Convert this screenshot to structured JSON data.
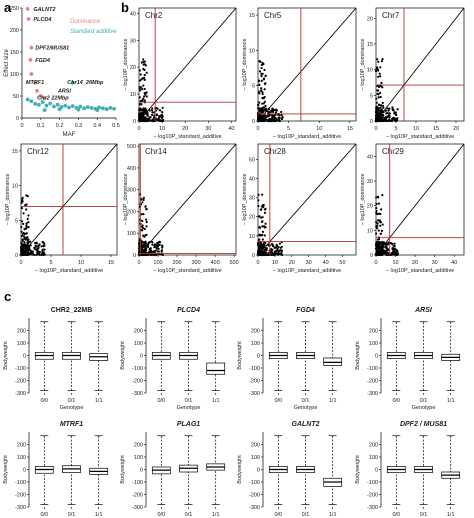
{
  "panel_labels": {
    "a": "a",
    "b": "b",
    "c": "c"
  },
  "colors": {
    "dominance": "#f08080",
    "standard_additive": "#40b0b0",
    "threshold": "#b03030",
    "diagonal": "#000000",
    "points": "#000000",
    "box_fill": "#ffffff",
    "text": "#222222"
  },
  "chart_data": [
    {
      "id": "a",
      "type": "scatter",
      "title": "",
      "xlabel": "MAF",
      "ylabel": "Effect size",
      "xlim": [
        0,
        0.5
      ],
      "ylim": [
        0,
        250
      ],
      "xticks": [
        0.0,
        0.1,
        0.2,
        0.3,
        0.4,
        0.5
      ],
      "yticks": [
        0,
        50,
        100,
        150,
        200,
        250
      ],
      "legend": {
        "position": "top-right",
        "entries": [
          "Dominance",
          "Standard additive"
        ]
      },
      "series": [
        {
          "name": "Dominance",
          "color_key": "dominance",
          "points": [
            [
              0.03,
              248
            ],
            [
              0.035,
              225
            ],
            [
              0.05,
              160
            ],
            [
              0.045,
              132
            ],
            [
              0.05,
              100
            ],
            [
              0.07,
              80
            ],
            [
              0.08,
              62
            ],
            [
              0.1,
              50
            ],
            [
              0.12,
              45
            ]
          ]
        },
        {
          "name": "Standard additive",
          "color_key": "standard_additive",
          "points": [
            [
              0.03,
              42
            ],
            [
              0.05,
              38
            ],
            [
              0.07,
              32
            ],
            [
              0.09,
              30
            ],
            [
              0.11,
              36
            ],
            [
              0.13,
              28
            ],
            [
              0.15,
              33
            ],
            [
              0.17,
              26
            ],
            [
              0.19,
              30
            ],
            [
              0.21,
              25
            ],
            [
              0.23,
              28
            ],
            [
              0.25,
              24
            ],
            [
              0.27,
              27
            ],
            [
              0.29,
              23
            ],
            [
              0.31,
              26
            ],
            [
              0.33,
              22
            ],
            [
              0.35,
              25
            ],
            [
              0.37,
              23
            ],
            [
              0.39,
              21
            ],
            [
              0.41,
              24
            ],
            [
              0.43,
              22
            ],
            [
              0.45,
              20
            ],
            [
              0.47,
              23
            ],
            [
              0.49,
              21
            ],
            [
              0.12,
              18
            ],
            [
              0.2,
              20
            ],
            [
              0.3,
              19
            ],
            [
              0.4,
              18
            ],
            [
              0.27,
              80
            ]
          ]
        }
      ],
      "annotations": [
        {
          "text": "GALNT2",
          "x": 0.05,
          "y": 248
        },
        {
          "text": "PLCD4",
          "x": 0.05,
          "y": 225
        },
        {
          "text": "DPF2/MUS81",
          "x": 0.06,
          "y": 160
        },
        {
          "text": "FGD4",
          "x": 0.06,
          "y": 132
        },
        {
          "text": "MTRF1",
          "x": 0.01,
          "y": 82
        },
        {
          "text": "ARSI",
          "x": 0.18,
          "y": 63
        },
        {
          "text": "Chr14_26Mbp",
          "x": 0.23,
          "y": 82
        },
        {
          "text": "Chr2 22Mbp",
          "x": 0.07,
          "y": 47
        }
      ]
    },
    {
      "id": "b",
      "type": "scatter",
      "xlabel": "− log10P_standard_additive",
      "ylabel": "− log10P_dominance",
      "subplots": [
        {
          "title": "Chr2",
          "xlim": [
            0,
            42
          ],
          "ylim": [
            0,
            42
          ],
          "xticks": [
            0,
            10,
            20,
            30,
            40
          ],
          "yticks": [
            0,
            10,
            20,
            30,
            40
          ],
          "vline": 7,
          "hline": 7
        },
        {
          "title": "Chr5",
          "xlim": [
            0,
            16
          ],
          "ylim": [
            0,
            16
          ],
          "xticks": [
            0,
            5,
            10,
            15
          ],
          "yticks": [
            0,
            5,
            10,
            15
          ],
          "vline": 7,
          "hline": 1
        },
        {
          "title": "Chr7",
          "xlim": [
            0,
            22
          ],
          "ylim": [
            0,
            22
          ],
          "xticks": [
            0,
            5,
            10,
            15,
            20
          ],
          "yticks": [
            0,
            5,
            10,
            15,
            20
          ],
          "vline": 7,
          "hline": 7
        },
        {
          "title": "Chr12",
          "xlim": [
            0,
            16
          ],
          "ylim": [
            0,
            16
          ],
          "xticks": [
            0,
            5,
            10,
            15
          ],
          "yticks": [
            0,
            5,
            10,
            15
          ],
          "vline": 7,
          "hline": 7
        },
        {
          "title": "Chr14",
          "xlim": [
            0,
            510
          ],
          "ylim": [
            0,
            510
          ],
          "xticks": [
            0,
            100,
            200,
            300,
            400,
            500
          ],
          "yticks": [
            0,
            100,
            200,
            300,
            400,
            500
          ],
          "vline": 7,
          "hline": 7
        },
        {
          "title": "Chr28",
          "xlim": [
            0,
            58
          ],
          "ylim": [
            0,
            58
          ],
          "xticks": [
            0,
            10,
            20,
            30,
            40,
            50
          ],
          "yticks": [
            0,
            10,
            20,
            30,
            40,
            50
          ],
          "vline": 7,
          "hline": 7
        },
        {
          "title": "Chr29",
          "xlim": [
            0,
            45
          ],
          "ylim": [
            0,
            45
          ],
          "xticks": [
            0,
            10,
            20,
            30,
            40
          ],
          "yticks": [
            0,
            10,
            20,
            30,
            40
          ],
          "vline": 7,
          "hline": 7
        }
      ]
    },
    {
      "id": "c",
      "type": "box",
      "xlabel": "Genotype",
      "ylabel": "Bodyweight",
      "categories": [
        "0/0",
        "0/1",
        "1/1"
      ],
      "ylim": [
        -300,
        300
      ],
      "yticks": [
        -300,
        -200,
        -100,
        0,
        100,
        200
      ],
      "subplots": [
        {
          "title": "CHR2_22MB",
          "italic": false,
          "boxes": [
            [
              -280,
              -30,
              0,
              25,
              270
            ],
            [
              -280,
              -30,
              0,
              25,
              270
            ],
            [
              -280,
              -40,
              -10,
              15,
              270
            ]
          ]
        },
        {
          "title": "PLCD4",
          "italic": true,
          "boxes": [
            [
              -280,
              -30,
              0,
              25,
              270
            ],
            [
              -280,
              -30,
              0,
              25,
              270
            ],
            [
              -280,
              -150,
              -120,
              -60,
              270
            ]
          ]
        },
        {
          "title": "FGD4",
          "italic": true,
          "boxes": [
            [
              -280,
              -25,
              0,
              25,
              270
            ],
            [
              -280,
              -25,
              0,
              25,
              270
            ],
            [
              -280,
              -80,
              -55,
              -20,
              270
            ]
          ]
        },
        {
          "title": "ARSI",
          "italic": true,
          "boxes": [
            [
              -280,
              -25,
              0,
              25,
              270
            ],
            [
              -280,
              -25,
              0,
              25,
              270
            ],
            [
              -280,
              -40,
              -15,
              10,
              270
            ]
          ]
        },
        {
          "title": "MTRF1",
          "italic": true,
          "boxes": [
            [
              -280,
              -30,
              0,
              25,
              270
            ],
            [
              -280,
              -25,
              5,
              30,
              270
            ],
            [
              -280,
              -40,
              -15,
              10,
              270
            ]
          ]
        },
        {
          "title": "PLAG1",
          "italic": true,
          "boxes": [
            [
              -280,
              -35,
              -5,
              20,
              270
            ],
            [
              -280,
              -20,
              10,
              35,
              270
            ],
            [
              -280,
              -5,
              20,
              45,
              270
            ]
          ]
        },
        {
          "title": "GALNT2",
          "italic": true,
          "boxes": [
            [
              -280,
              -25,
              0,
              25,
              270
            ],
            [
              -280,
              -25,
              0,
              25,
              270
            ],
            [
              -280,
              -135,
              -100,
              -70,
              270
            ]
          ]
        },
        {
          "title": "DPF2 / MUS81",
          "italic": true,
          "boxes": [
            [
              -280,
              -25,
              0,
              25,
              270
            ],
            [
              -280,
              -25,
              0,
              25,
              270
            ],
            [
              -280,
              -70,
              -45,
              -20,
              270
            ]
          ]
        }
      ]
    }
  ]
}
